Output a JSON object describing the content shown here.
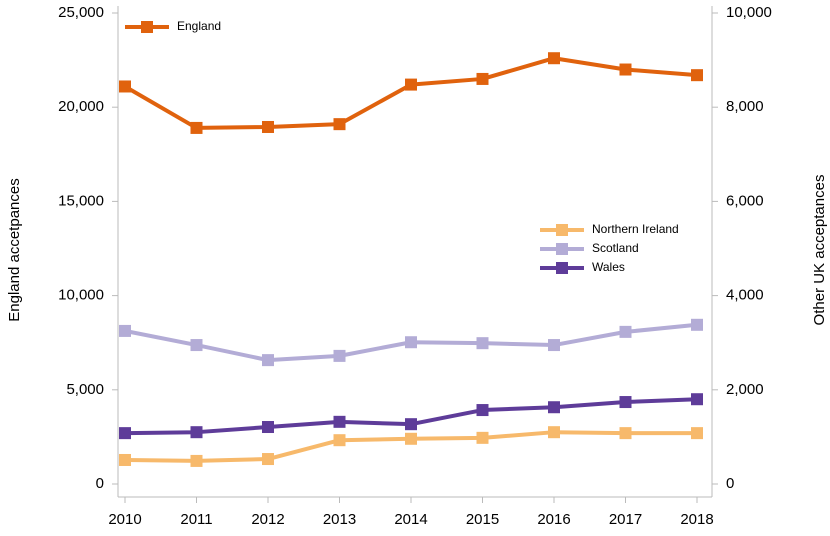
{
  "chart_data": {
    "type": "line",
    "y_label": "England accetpances",
    "y2_label": "Other UK acceptances",
    "categories": [
      "2010",
      "2011",
      "2012",
      "2013",
      "2014",
      "2015",
      "2016",
      "2017",
      "2018"
    ],
    "series": [
      {
        "name": "England",
        "color": "#e0620d",
        "values": [
          21100,
          18900,
          18950,
          19100,
          21200,
          21500,
          22600,
          22000,
          21700
        ]
      },
      {
        "name": "Northern Ireland",
        "color": "#f7b96b",
        "axis": "y2",
        "values": [
          510,
          490,
          530,
          930,
          960,
          980,
          1100,
          1080,
          1080
        ]
      },
      {
        "name": "Scotland",
        "color": "#b3acd6",
        "axis": "y2",
        "values": [
          3250,
          2950,
          2630,
          2720,
          3010,
          2990,
          2950,
          3230,
          3380
        ]
      },
      {
        "name": "Wales",
        "color": "#5e3c99",
        "axis": "y2",
        "values": [
          1080,
          1100,
          1210,
          1320,
          1270,
          1570,
          1630,
          1740,
          1800
        ]
      }
    ],
    "ylim": [
      0,
      25000
    ],
    "yticks": [
      0,
      {
        "value": 5000,
        "label": "5,000"
      },
      {
        "value": 10000,
        "label": "10,000"
      },
      {
        "value": 15000,
        "label": "15,000"
      },
      {
        "value": 20000,
        "label": "20,000"
      },
      {
        "value": 25000,
        "label": "25,000"
      }
    ],
    "y2lim": [
      0,
      10000
    ],
    "y2ticks": [
      0,
      {
        "value": 2000,
        "label": "2,000"
      },
      {
        "value": 4000,
        "label": "4,000"
      },
      {
        "value": 6000,
        "label": "6,000"
      },
      {
        "value": 8000,
        "label": "8,000"
      },
      {
        "value": 10000,
        "label": "10,000"
      }
    ],
    "grid": false
  }
}
